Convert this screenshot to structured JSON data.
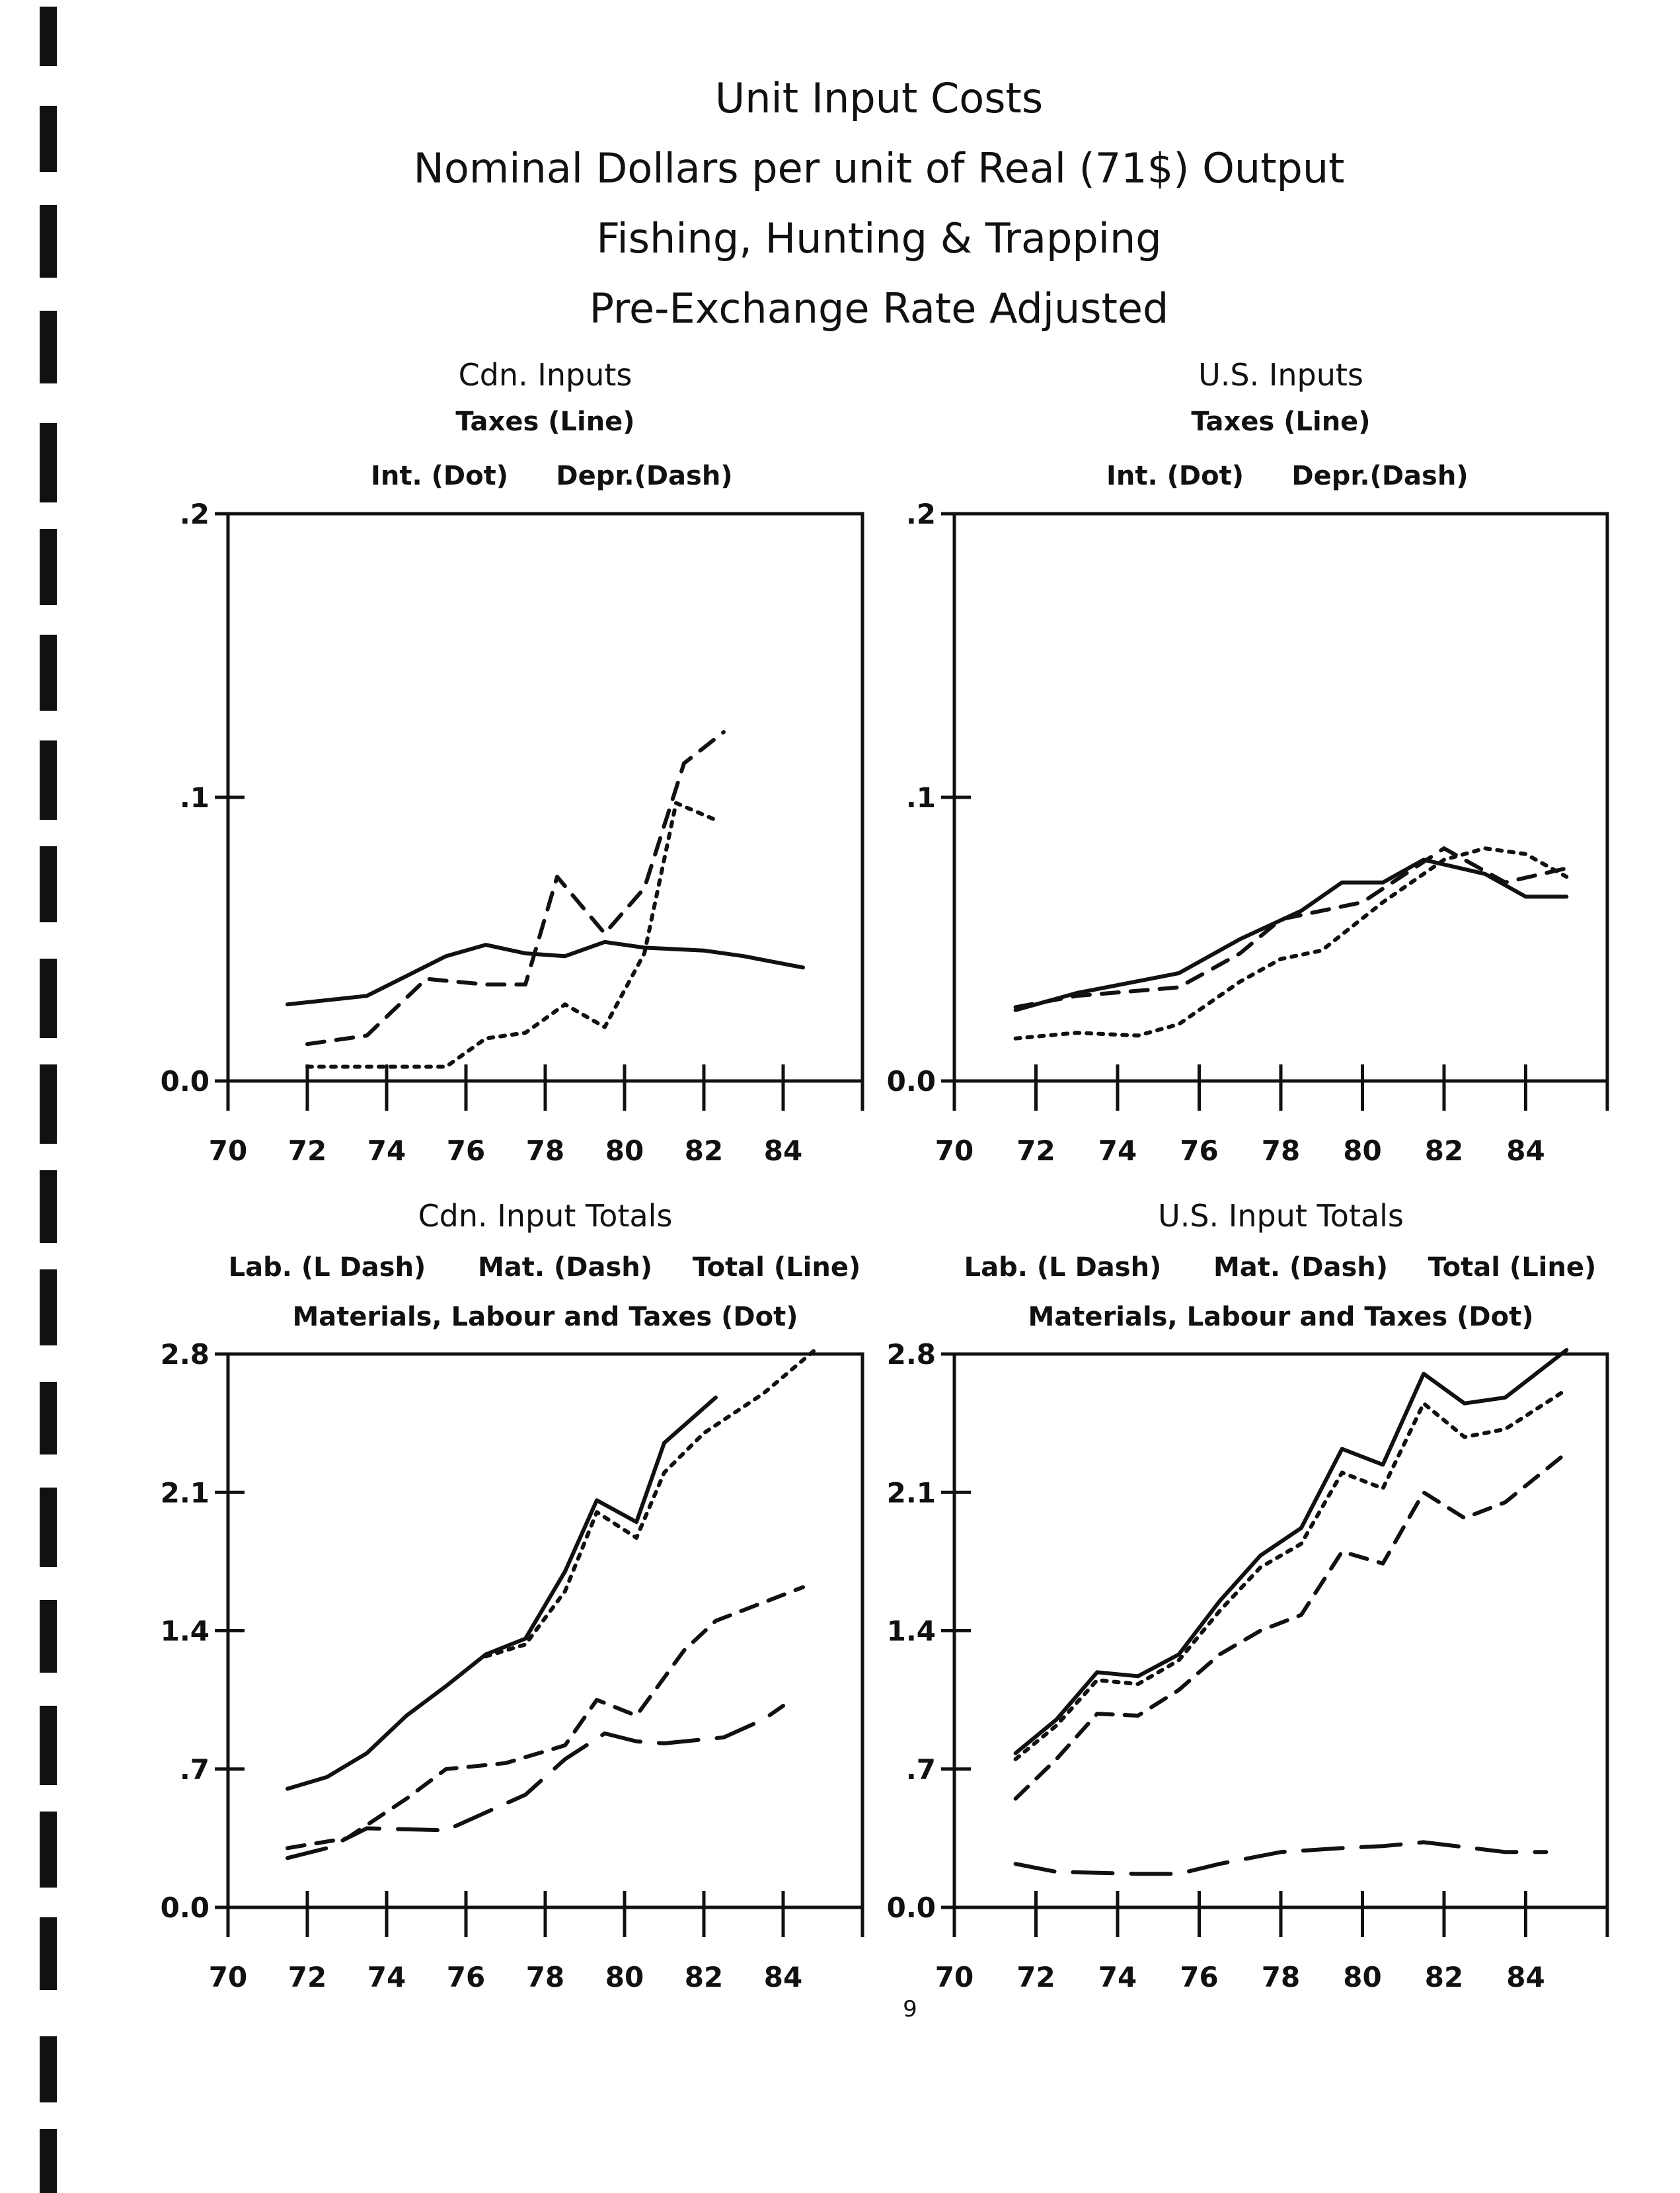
{
  "page": {
    "title_lines": [
      "Unit Input Costs",
      "Nominal Dollars per unit of Real (71$) Output",
      "Fishing, Hunting & Trapping",
      "Pre-Exchange Rate Adjusted"
    ],
    "page_number": "9",
    "ink_color": "#111111"
  },
  "chart_data": [
    {
      "type": "line",
      "title": "Cdn. Inputs",
      "legend": [
        "Taxes (Line)",
        "Int. (Dot)",
        "Depr.(Dash)"
      ],
      "xlim": [
        70,
        86
      ],
      "ylim": [
        0,
        0.2
      ],
      "xticks": [
        70,
        72,
        74,
        76,
        78,
        80,
        82,
        84,
        86
      ],
      "xtick_labels": [
        "70",
        "72",
        "74",
        "76",
        "78",
        "80",
        "82",
        "84",
        ""
      ],
      "yticks": [
        0,
        0.1,
        0.2
      ],
      "ytick_labels": [
        "0.0",
        ".1",
        ".2"
      ],
      "series": [
        {
          "name": "Taxes",
          "style": "line",
          "x": [
            71.5,
            73.5,
            74.5,
            75.5,
            76.5,
            77.5,
            78.5,
            79.5,
            80.5,
            82,
            83,
            84.5
          ],
          "y": [
            0.027,
            0.03,
            0.037,
            0.044,
            0.048,
            0.045,
            0.044,
            0.049,
            0.047,
            0.046,
            0.044,
            0.04
          ]
        },
        {
          "name": "Int.",
          "style": "dot",
          "x": [
            72,
            75.5,
            76.5,
            77.5,
            78.5,
            79.5,
            80.5,
            81.3,
            82.3
          ],
          "y": [
            0.005,
            0.005,
            0.015,
            0.017,
            0.027,
            0.019,
            0.045,
            0.098,
            0.092
          ]
        },
        {
          "name": "Depr.",
          "style": "dash",
          "x": [
            72,
            73.5,
            75,
            76.5,
            77.5,
            78.3,
            79.5,
            80.5,
            81.5,
            82.5
          ],
          "y": [
            0.013,
            0.016,
            0.036,
            0.034,
            0.034,
            0.072,
            0.052,
            0.068,
            0.112,
            0.123
          ]
        }
      ]
    },
    {
      "type": "line",
      "title": "U.S. Inputs",
      "legend": [
        "Taxes (Line)",
        "Int. (Dot)",
        "Depr.(Dash)"
      ],
      "xlim": [
        70,
        86
      ],
      "ylim": [
        0,
        0.2
      ],
      "xticks": [
        70,
        72,
        74,
        76,
        78,
        80,
        82,
        84,
        86
      ],
      "xtick_labels": [
        "70",
        "72",
        "74",
        "76",
        "78",
        "80",
        "82",
        "84",
        ""
      ],
      "yticks": [
        0,
        0.1,
        0.2
      ],
      "ytick_labels": [
        "0.0",
        ".1",
        ".2"
      ],
      "series": [
        {
          "name": "Taxes",
          "style": "line",
          "x": [
            71.5,
            73,
            75.5,
            77,
            78.5,
            79.5,
            80.5,
            81.5,
            83,
            84,
            85
          ],
          "y": [
            0.025,
            0.031,
            0.038,
            0.05,
            0.06,
            0.07,
            0.07,
            0.078,
            0.073,
            0.065,
            0.065
          ]
        },
        {
          "name": "Int.",
          "style": "dot",
          "x": [
            71.5,
            73,
            74.5,
            75.5,
            77,
            78,
            79,
            80.5,
            82,
            83,
            84,
            85
          ],
          "y": [
            0.015,
            0.017,
            0.016,
            0.02,
            0.035,
            0.043,
            0.046,
            0.063,
            0.078,
            0.082,
            0.08,
            0.072
          ]
        },
        {
          "name": "Depr.",
          "style": "dash",
          "x": [
            71.5,
            73,
            75.5,
            77,
            78,
            80,
            82,
            83.5,
            85
          ],
          "y": [
            0.026,
            0.03,
            0.033,
            0.045,
            0.057,
            0.063,
            0.082,
            0.07,
            0.075
          ]
        }
      ]
    },
    {
      "type": "line",
      "title": "Cdn. Input Totals",
      "legend": [
        "Lab. (L Dash)",
        "Mat. (Dash)",
        "Total (Line)",
        "Materials, Labour and Taxes (Dot)"
      ],
      "xlim": [
        70,
        86
      ],
      "ylim": [
        0,
        2.8
      ],
      "xticks": [
        70,
        72,
        74,
        76,
        78,
        80,
        82,
        84,
        86
      ],
      "xtick_labels": [
        "70",
        "72",
        "74",
        "76",
        "78",
        "80",
        "82",
        "84",
        ""
      ],
      "yticks": [
        0,
        0.7,
        1.4,
        2.1,
        2.8
      ],
      "ytick_labels": [
        "0.0",
        ".7",
        "1.4",
        "2.1",
        "2.8"
      ],
      "series": [
        {
          "name": "Total",
          "style": "line",
          "x": [
            71.5,
            72.5,
            73.5,
            74.5,
            75.5,
            76.5,
            77.5,
            78.5,
            79.3,
            80.3,
            81,
            82.3
          ],
          "y": [
            0.6,
            0.66,
            0.78,
            0.97,
            1.12,
            1.28,
            1.36,
            1.7,
            2.06,
            1.95,
            2.35,
            2.58
          ]
        },
        {
          "name": "Materials, Labour and Taxes",
          "style": "dot",
          "x": [
            76.5,
            77.5,
            78.5,
            79.3,
            80.3,
            81,
            82,
            83.5,
            84.8
          ],
          "y": [
            1.27,
            1.33,
            1.6,
            2.0,
            1.87,
            2.2,
            2.4,
            2.6,
            2.82
          ]
        },
        {
          "name": "Mat.",
          "style": "dash",
          "x": [
            71.5,
            73,
            74.5,
            75.5,
            77,
            78.5,
            79.3,
            80.3,
            81.5,
            82.3,
            84.5
          ],
          "y": [
            0.3,
            0.35,
            0.55,
            0.7,
            0.73,
            0.82,
            1.05,
            0.97,
            1.3,
            1.45,
            1.62
          ]
        },
        {
          "name": "Lab.",
          "style": "ldash",
          "x": [
            71.5,
            72.5,
            73.5,
            75.5,
            77.5,
            78.5,
            79.5,
            80.3,
            81,
            82.5,
            83.5,
            84
          ],
          "y": [
            0.25,
            0.3,
            0.4,
            0.39,
            0.57,
            0.75,
            0.88,
            0.84,
            0.83,
            0.86,
            0.95,
            1.02
          ]
        }
      ]
    },
    {
      "type": "line",
      "title": "U.S. Input Totals",
      "legend": [
        "Lab. (L Dash)",
        "Mat. (Dash)",
        "Total (Line)",
        "Materials, Labour and Taxes (Dot)"
      ],
      "xlim": [
        70,
        86
      ],
      "ylim": [
        0,
        2.8
      ],
      "xticks": [
        70,
        72,
        74,
        76,
        78,
        80,
        82,
        84,
        86
      ],
      "xtick_labels": [
        "70",
        "72",
        "74",
        "76",
        "78",
        "80",
        "82",
        "84",
        ""
      ],
      "yticks": [
        0,
        0.7,
        1.4,
        2.1,
        2.8
      ],
      "ytick_labels": [
        "0.0",
        ".7",
        "1.4",
        "2.1",
        "2.8"
      ],
      "series": [
        {
          "name": "Total",
          "style": "line",
          "x": [
            71.5,
            72.5,
            73.5,
            74.5,
            75.5,
            76.5,
            77.5,
            78.5,
            79.5,
            80.5,
            81.5,
            82.5,
            83.5,
            85
          ],
          "y": [
            0.78,
            0.95,
            1.19,
            1.17,
            1.28,
            1.55,
            1.78,
            1.92,
            2.32,
            2.24,
            2.7,
            2.55,
            2.58,
            2.82
          ]
        },
        {
          "name": "Materials, Labour and Taxes",
          "style": "dot",
          "x": [
            71.5,
            72.5,
            73.5,
            74.5,
            75.5,
            76.5,
            77.5,
            78.5,
            79.5,
            80.5,
            81.5,
            82.5,
            83.5,
            85
          ],
          "y": [
            0.75,
            0.92,
            1.15,
            1.13,
            1.25,
            1.5,
            1.72,
            1.84,
            2.2,
            2.12,
            2.55,
            2.38,
            2.42,
            2.62
          ]
        },
        {
          "name": "Mat.",
          "style": "dash",
          "x": [
            71.5,
            72.5,
            73.5,
            74.5,
            75.5,
            76.5,
            77.5,
            78.5,
            79.5,
            80.5,
            81.5,
            82.5,
            83.5,
            85
          ],
          "y": [
            0.55,
            0.75,
            0.98,
            0.97,
            1.1,
            1.28,
            1.4,
            1.48,
            1.8,
            1.74,
            2.1,
            1.97,
            2.05,
            2.3
          ]
        },
        {
          "name": "Lab.",
          "style": "ldash",
          "x": [
            71.5,
            72.5,
            74.5,
            75.5,
            76.5,
            78,
            79.5,
            80.5,
            81.5,
            83.5,
            84.5
          ],
          "y": [
            0.22,
            0.18,
            0.17,
            0.17,
            0.22,
            0.28,
            0.3,
            0.31,
            0.33,
            0.28,
            0.28
          ]
        }
      ]
    }
  ]
}
